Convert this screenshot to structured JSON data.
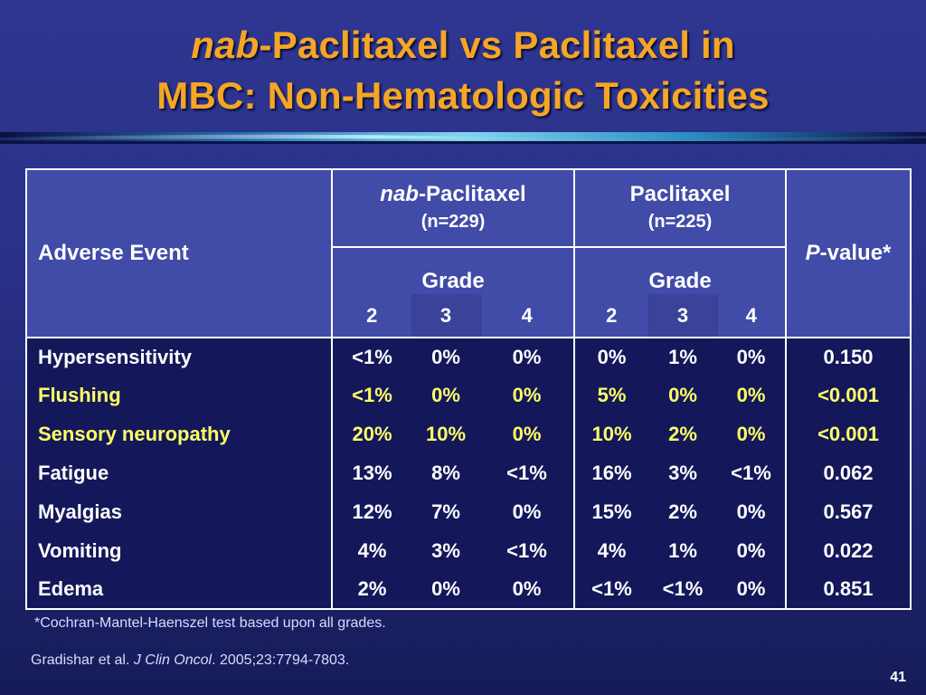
{
  "title": {
    "line1_italic": "nab",
    "line1_rest": "-Paclitaxel vs Paclitaxel in",
    "line2": "MBC: Non-Hematologic Toxicities"
  },
  "table": {
    "adverse_event_header": "Adverse Event",
    "arm1": {
      "name_italic": "nab",
      "name_rest": "-Paclitaxel",
      "n": "(n=229)"
    },
    "arm2": {
      "name": "Paclitaxel",
      "n": "(n=225)"
    },
    "grade_label": "Grade",
    "grades": [
      "2",
      "3",
      "4"
    ],
    "pvalue_italic": "P",
    "pvalue_rest": "-value*",
    "rows": [
      {
        "event": "Hypersensitivity",
        "highlight": false,
        "nab": [
          "<1%",
          "0%",
          "0%"
        ],
        "pac": [
          "0%",
          "1%",
          "0%"
        ],
        "p": "0.150"
      },
      {
        "event": "Flushing",
        "highlight": true,
        "nab": [
          "<1%",
          "0%",
          "0%"
        ],
        "pac": [
          "5%",
          "0%",
          "0%"
        ],
        "p": "<0.001"
      },
      {
        "event": "Sensory neuropathy",
        "highlight": true,
        "nab": [
          "20%",
          "10%",
          "0%"
        ],
        "pac": [
          "10%",
          "2%",
          "0%"
        ],
        "p": "<0.001"
      },
      {
        "event": "Fatigue",
        "highlight": false,
        "nab": [
          "13%",
          "8%",
          "<1%"
        ],
        "pac": [
          "16%",
          "3%",
          "<1%"
        ],
        "p": "0.062"
      },
      {
        "event": "Myalgias",
        "highlight": false,
        "nab": [
          "12%",
          "7%",
          "0%"
        ],
        "pac": [
          "15%",
          "2%",
          "0%"
        ],
        "p": "0.567"
      },
      {
        "event": "Vomiting",
        "highlight": false,
        "nab": [
          "4%",
          "3%",
          "<1%"
        ],
        "pac": [
          "4%",
          "1%",
          "0%"
        ],
        "p": "0.022"
      },
      {
        "event": "Edema",
        "highlight": false,
        "nab": [
          "2%",
          "0%",
          "0%"
        ],
        "pac": [
          "<1%",
          "<1%",
          "0%"
        ],
        "p": "0.851"
      }
    ]
  },
  "footnote": "*Cochran-Mantel-Haenszel test based upon all grades.",
  "citation": {
    "authors": "Gradishar et al. ",
    "journal": "J Clin Oncol",
    "rest": ". 2005;23:7794-7803."
  },
  "page_number": "41",
  "colors": {
    "title": "#f5a623",
    "highlight_text": "#ffff66",
    "header_bg": "#414ba8",
    "body_bg": "#14185a"
  }
}
